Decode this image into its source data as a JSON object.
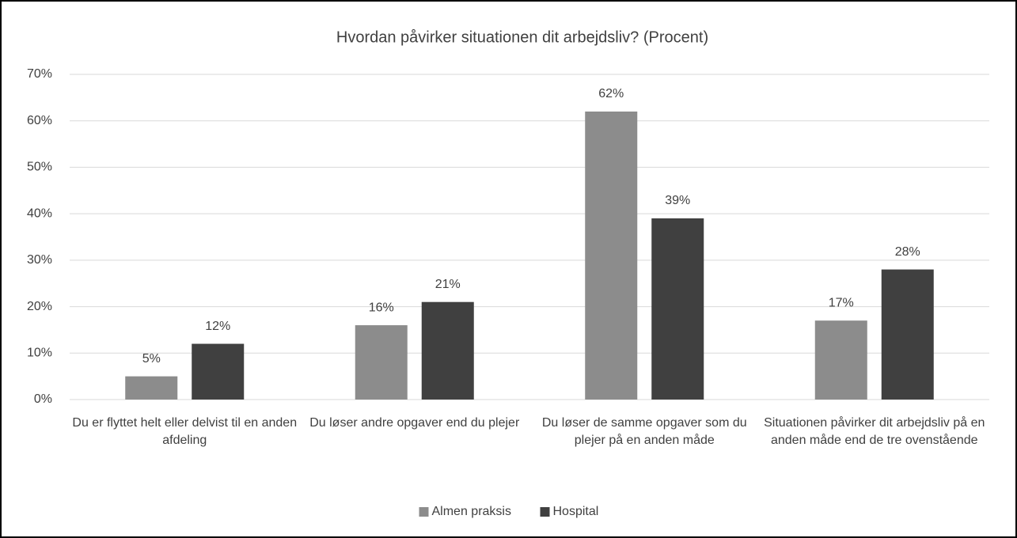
{
  "chart_data": {
    "type": "bar",
    "title": "Hvordan påvirker situationen dit arbejdsliv? (Procent)",
    "categories": [
      "Du er flyttet helt eller delvist til en anden afdeling",
      "Du løser andre opgaver end du plejer",
      "Du løser de samme opgaver som du plejer på en anden måde",
      "Situationen påvirker dit arbejdsliv på en anden måde end de tre ovenstående"
    ],
    "series": [
      {
        "name": "Almen praksis",
        "color": "#8c8c8c",
        "values": [
          5,
          16,
          62,
          17
        ],
        "value_labels": [
          "5%",
          "16%",
          "62%",
          "17%"
        ]
      },
      {
        "name": "Hospital",
        "color": "#404040",
        "values": [
          12,
          21,
          39,
          28
        ],
        "value_labels": [
          "12%",
          "21%",
          "39%",
          "28%"
        ]
      }
    ],
    "ylim": [
      0,
      70
    ],
    "yticks": [
      {
        "value": 0,
        "label": "0%"
      },
      {
        "value": 10,
        "label": "10%"
      },
      {
        "value": 20,
        "label": "20%"
      },
      {
        "value": 30,
        "label": "30%"
      },
      {
        "value": 40,
        "label": "40%"
      },
      {
        "value": 50,
        "label": "50%"
      },
      {
        "value": 60,
        "label": "60%"
      },
      {
        "value": 70,
        "label": "70%"
      }
    ],
    "grid": true,
    "legend": "bottom"
  }
}
